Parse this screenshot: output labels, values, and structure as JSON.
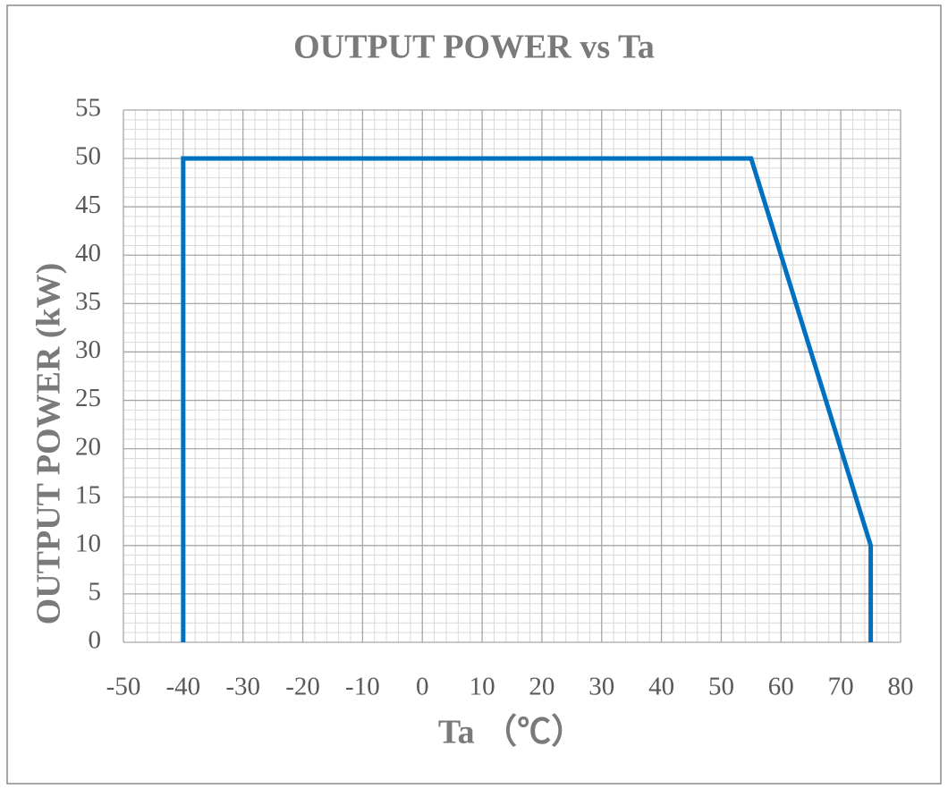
{
  "chart_data": {
    "type": "line",
    "title": "OUTPUT POWER vs Ta",
    "x_label": "Ta （℃）",
    "y_label": "OUTPUT POWER (kW)",
    "x": [
      -40,
      -40,
      55,
      75,
      75
    ],
    "series": [
      {
        "color": "#0070c0",
        "values": [
          0,
          50,
          50,
          10,
          0
        ]
      }
    ],
    "xlim": [
      -50,
      80
    ],
    "xticks": [
      -50,
      -40,
      -30,
      -20,
      -10,
      0,
      10,
      20,
      30,
      40,
      50,
      60,
      70,
      80
    ],
    "ylim": [
      0,
      55
    ],
    "yticks": [
      0,
      5,
      10,
      15,
      20,
      25,
      30,
      35,
      40,
      45,
      50,
      55
    ],
    "grid": true,
    "minor_grid": true
  }
}
